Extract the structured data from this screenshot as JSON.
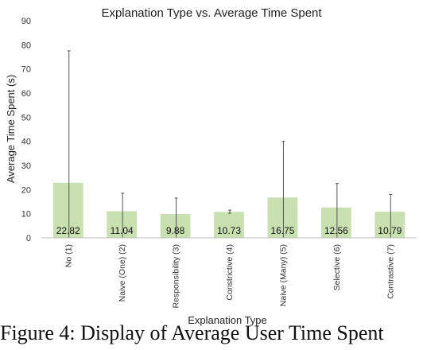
{
  "chart_data": {
    "type": "bar",
    "title": "Explanation Type vs. Average Time Spent",
    "xlabel": "Explanation Type",
    "ylabel": "Average Time Spent (s)",
    "ylim": [
      0,
      90
    ],
    "yticks": [
      0,
      10,
      20,
      30,
      40,
      50,
      60,
      70,
      80,
      90
    ],
    "grid": false,
    "categories": [
      "No (1)",
      "Naive (One) (2)",
      "Responsibility (3)",
      "Constrictive (4)",
      "Naive (Many) (5)",
      "Selective (6)",
      "Contrastive (7)"
    ],
    "values": [
      22.82,
      11.04,
      9.88,
      10.73,
      16.75,
      12.56,
      10.79
    ],
    "value_labels": [
      "22.82",
      "11.04",
      "9.88",
      "10.73",
      "16.75",
      "12.56",
      "10.79"
    ],
    "error_upper": [
      77.5,
      18.5,
      16.5,
      11.5,
      40,
      22.5,
      18
    ],
    "error_lower": [
      0,
      0,
      0,
      10.2,
      0,
      0,
      0
    ],
    "colors": {
      "bar": "#c9e0b0",
      "error": "#555555",
      "axis": "#bfbfbf"
    }
  },
  "caption": "Figure 4: Display of Average User Time Spent"
}
